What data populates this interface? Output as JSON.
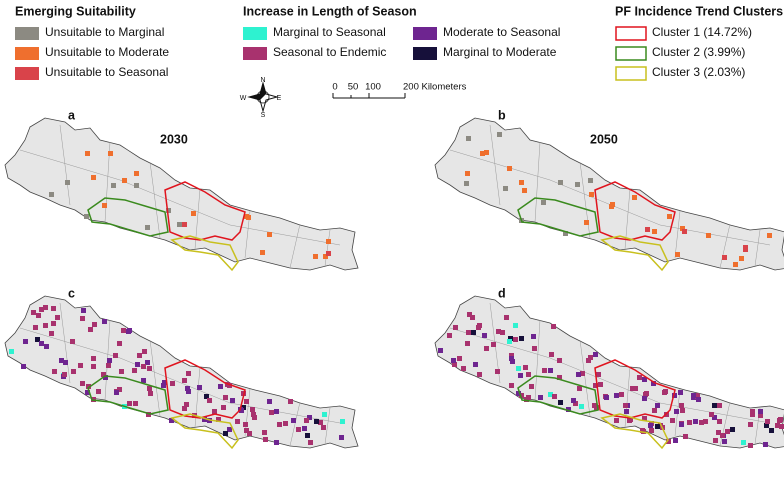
{
  "legends": [
    {
      "title": "Emerging Suitability",
      "items": [
        {
          "label": "Unsuitable to Marginal",
          "color": "#8c8a82"
        },
        {
          "label": "Unsuitable to Moderate",
          "color": "#ef6f2e"
        },
        {
          "label": "Unsuitable to Seasonal",
          "color": "#d9434a"
        }
      ]
    },
    {
      "title": "Increase in Length of Season",
      "items": [
        {
          "label": "Marginal to Seasonal",
          "color": "#2ef2d0"
        },
        {
          "label": "Seasonal to Endemic",
          "color": "#a8326e"
        },
        {
          "label": "Moderate to Seasonal",
          "color": "#6e2590"
        },
        {
          "label": "Marginal to Moderate",
          "color": "#16103a"
        }
      ]
    },
    {
      "title": "PF Incidence Trend Clusters",
      "items": [
        {
          "label": "Cluster 1 (14.72%)",
          "color": "#e0141e"
        },
        {
          "label": "Cluster 2 (3.99%)",
          "color": "#3a8a1e"
        },
        {
          "label": "Cluster 3 (2.03%)",
          "color": "#c8c01e"
        }
      ]
    }
  ],
  "compass": {
    "north": "N",
    "south": "S",
    "east": "E",
    "west": "W"
  },
  "scale": {
    "labels": [
      "0",
      "50",
      "100",
      "200 Kilometers"
    ]
  },
  "panels": [
    {
      "label": "a",
      "year": "2030"
    },
    {
      "label": "b",
      "year": "2050"
    },
    {
      "label": "c"
    },
    {
      "label": "d"
    }
  ]
}
